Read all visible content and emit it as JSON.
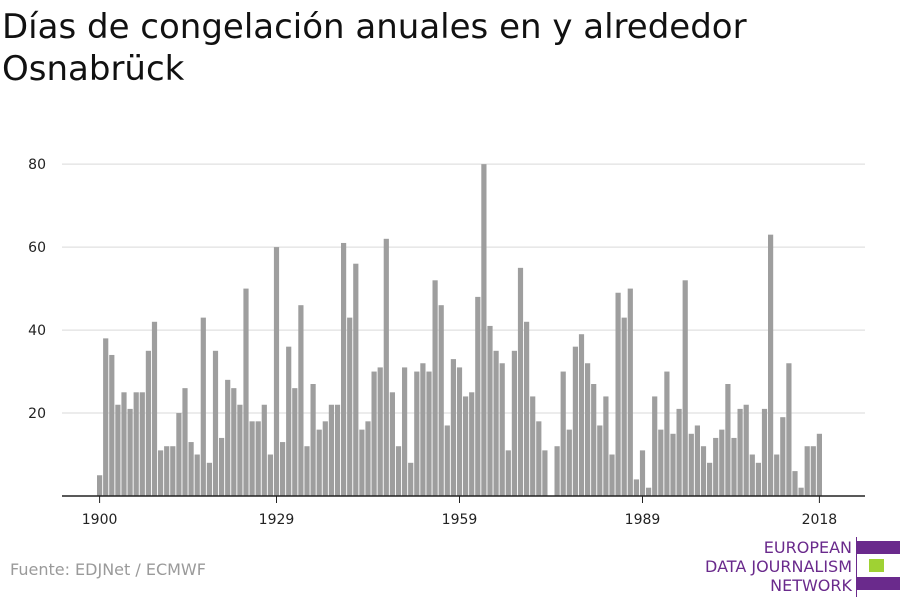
{
  "title": "Días de congelación anuales en y alrededor Osnabrück",
  "source": "Fuente: EDJNet / ECMWF",
  "logo": {
    "lines": [
      "EUROPEAN",
      "DATA JOURNALISM",
      "NETWORK"
    ],
    "colors": [
      "#6a2a8c",
      "#9fd233",
      "#6a2a8c"
    ]
  },
  "colors": {
    "bar": "#9e9e9e",
    "grid": "#d9d9d9",
    "axis": "#222222"
  },
  "chart_data": {
    "type": "bar",
    "title": "Días de congelación anuales en y alrededor Osnabrück",
    "xlabel": "",
    "ylabel": "",
    "x_start": 1900,
    "x_end": 2020,
    "x_ticks": [
      1900,
      1929,
      1959,
      1989,
      2018
    ],
    "y_ticks": [
      20,
      40,
      60,
      80
    ],
    "ylim": [
      0,
      81
    ],
    "grid": true,
    "legend": "none",
    "values": [
      5,
      38,
      34,
      22,
      25,
      21,
      25,
      25,
      35,
      42,
      11,
      12,
      12,
      20,
      26,
      13,
      10,
      43,
      8,
      35,
      14,
      28,
      26,
      22,
      50,
      18,
      18,
      22,
      10,
      60,
      13,
      36,
      26,
      46,
      12,
      27,
      16,
      18,
      22,
      22,
      61,
      43,
      56,
      16,
      18,
      30,
      31,
      62,
      25,
      12,
      31,
      8,
      30,
      32,
      30,
      52,
      46,
      17,
      33,
      31,
      24,
      25,
      48,
      80,
      41,
      35,
      32,
      11,
      35,
      55,
      42,
      24,
      18,
      11,
      0,
      12,
      30,
      16,
      36,
      39,
      32,
      27,
      17,
      24,
      10,
      49,
      43,
      50,
      4,
      11,
      2,
      24,
      16,
      30,
      15,
      21,
      52,
      15,
      17,
      12,
      8,
      14,
      16,
      27,
      14,
      21,
      22,
      10,
      8,
      21,
      63,
      10,
      19,
      32,
      6,
      2,
      12,
      12,
      15
    ]
  }
}
